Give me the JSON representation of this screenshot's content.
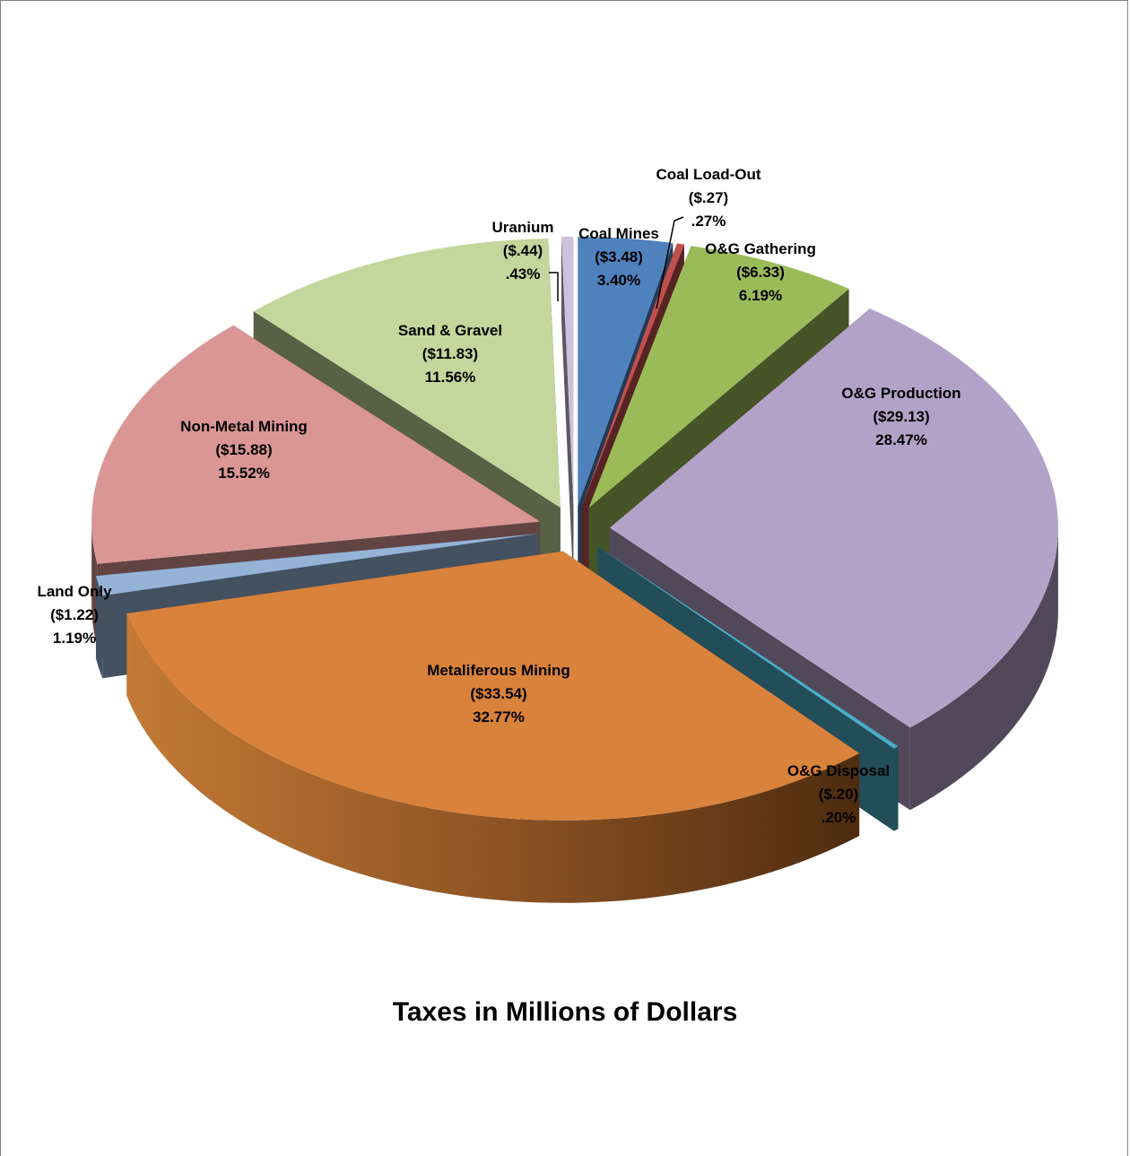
{
  "chart_data": {
    "type": "pie",
    "variant": "3d-exploded",
    "title": "Taxes in Millions of Dollars",
    "slices": [
      {
        "name": "Coal Mines",
        "value": 3.48,
        "value_label": "($3.48)",
        "percent": 3.4,
        "percent_label": "3.40%",
        "color": "#4f81bd"
      },
      {
        "name": "Coal Load-Out",
        "value": 0.27,
        "value_label": "($.27)",
        "percent": 0.27,
        "percent_label": ".27%",
        "color": "#c0504d"
      },
      {
        "name": "O&G Gathering",
        "value": 6.33,
        "value_label": "($6.33)",
        "percent": 6.19,
        "percent_label": "6.19%",
        "color": "#9bbb59"
      },
      {
        "name": "O&G Production",
        "value": 29.13,
        "value_label": "($29.13)",
        "percent": 28.47,
        "percent_label": "28.47%",
        "color": "#b3a2c7"
      },
      {
        "name": "O&G Disposal",
        "value": 0.2,
        "value_label": "($.20)",
        "percent": 0.2,
        "percent_label": ".20%",
        "color": "#4bacc6"
      },
      {
        "name": "Metaliferous Mining",
        "value": 33.54,
        "value_label": "($33.54)",
        "percent": 32.77,
        "percent_label": "32.77%",
        "color": "#d9823b"
      },
      {
        "name": "Land Only",
        "value": 1.22,
        "value_label": "($1.22)",
        "percent": 1.19,
        "percent_label": "1.19%",
        "color": "#95b3d7"
      },
      {
        "name": "Non-Metal Mining",
        "value": 15.88,
        "value_label": "($15.88)",
        "percent": 15.52,
        "percent_label": "15.52%",
        "color": "#d99694"
      },
      {
        "name": "Sand & Gravel",
        "value": 11.83,
        "value_label": "($11.83)",
        "percent": 11.56,
        "percent_label": "11.56%",
        "color": "#c3d69b"
      },
      {
        "name": "Uranium",
        "value": 0.44,
        "value_label": "($.44)",
        "percent": 0.43,
        "percent_label": ".43%",
        "color": "#ccc1da"
      }
    ]
  }
}
